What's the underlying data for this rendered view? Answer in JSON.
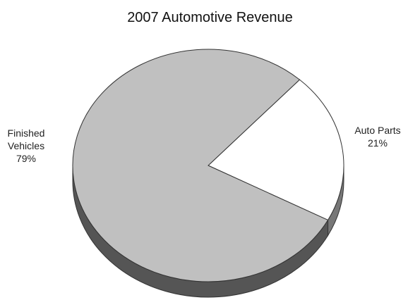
{
  "chart_data": {
    "type": "pie",
    "title": "2007 Automotive Revenue",
    "categories": [
      "Finished Vehicles",
      "Auto Parts"
    ],
    "values": [
      79,
      21
    ],
    "value_labels": [
      "79%",
      "21%"
    ],
    "colors": [
      "#c0c0c0",
      "#ffffff"
    ]
  }
}
